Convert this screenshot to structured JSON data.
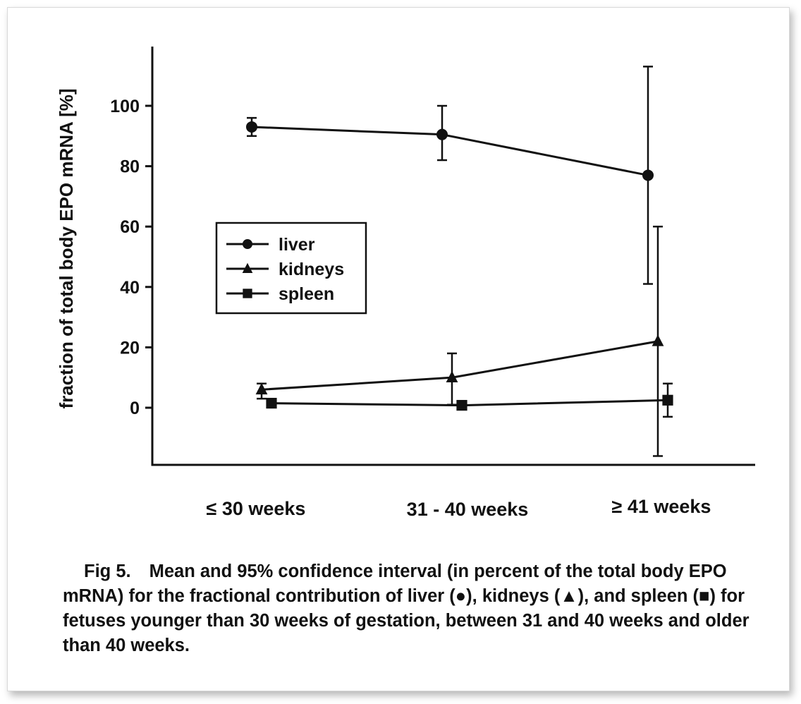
{
  "chart_data": {
    "type": "line",
    "categories": [
      "≤ 30 weeks",
      "31 - 40 weeks",
      "≥ 41 weeks"
    ],
    "ylabel": "fraction of total body EPO mRNA [%]",
    "xlabel": "",
    "ylim": [
      -20,
      120
    ],
    "yticks": [
      0,
      20,
      40,
      60,
      80,
      100
    ],
    "grid": false,
    "legend_position": "center-left",
    "series": [
      {
        "name": "liver",
        "marker": "circle",
        "values": [
          93,
          90.5,
          77
        ],
        "ci_low": [
          90,
          82,
          41
        ],
        "ci_high": [
          96,
          100,
          113
        ]
      },
      {
        "name": "kidneys",
        "marker": "triangle",
        "values": [
          6,
          10,
          22
        ],
        "ci_low": [
          3,
          1,
          -16
        ],
        "ci_high": [
          8,
          18,
          60
        ]
      },
      {
        "name": "spleen",
        "marker": "square",
        "values": [
          1.5,
          0.8,
          2.5
        ],
        "ci_low": [
          1.5,
          0.8,
          -3
        ],
        "ci_high": [
          1.5,
          0.8,
          8
        ]
      }
    ]
  },
  "caption": {
    "label": "Fig 5.",
    "text": "Mean and 95% confidence interval (in percent of the total body EPO mRNA) for the fractional contribution of liver (●), kidneys (▲), and spleen (■) for fetuses younger than 30 weeks of gestation, between 31 and 40 weeks and older than 40 weeks."
  },
  "colors": {
    "ink": "#111111",
    "background": "#ffffff"
  }
}
